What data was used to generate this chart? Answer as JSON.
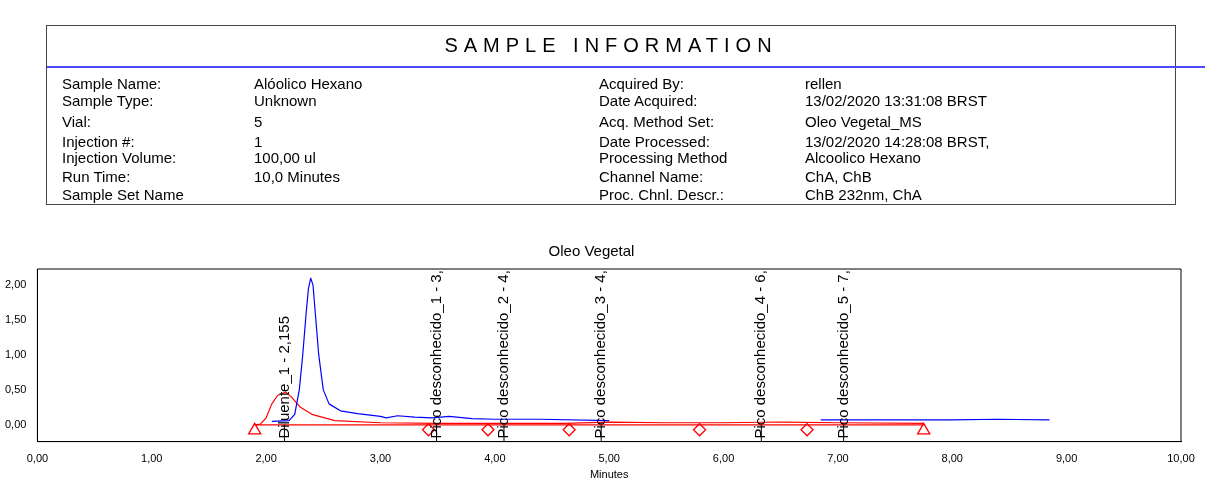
{
  "chart_data": [
    {
      "type": "other",
      "title": "SAMPLE INFORMATION",
      "annotations": [
        "Sample Name:",
        "Sample Type:",
        "Vial:",
        "Injection #:",
        "Injection Volume:",
        "Run Time:",
        "Sample Set Name",
        "Alóolico Hexano",
        "Unknown",
        "5",
        "1",
        "100,00 ul",
        "10,0 Minutes",
        "Acquired By:",
        "Date Acquired:",
        "Acq. Method Set:",
        "Date Processed:",
        "Processing Method",
        "Channel Name:",
        "Proc. Chnl. Descr.:",
        "rellen",
        "13/02/2020 13:31:08 BRST",
        "Oleo Vegetal_MS",
        "13/02/2020 14:28:08 BRST,",
        "Alcoolico Hexano",
        "ChA, ChB",
        "ChB 232nm, ChA"
      ]
    },
    {
      "type": "line",
      "title": "Oleo Vegetal",
      "xlabel": "Minutes",
      "xlim": [
        0,
        10
      ],
      "xticks": [
        {
          "value": 0,
          "label": "0,00"
        },
        {
          "value": 1,
          "label": "1,00"
        },
        {
          "value": 2,
          "label": "2,00"
        },
        {
          "value": 3,
          "label": "3,00"
        },
        {
          "value": 4,
          "label": "4,00"
        },
        {
          "value": 5,
          "label": "5,00"
        },
        {
          "value": 6,
          "label": "6,00"
        },
        {
          "value": 7,
          "label": "7,00"
        },
        {
          "value": 8,
          "label": "8,00"
        },
        {
          "value": 9,
          "label": "9,00"
        },
        {
          "value": 10,
          "label": "10,00"
        }
      ],
      "ylim": [
        -0.24,
        2.23
      ],
      "yticks": [
        {
          "value": 0,
          "label": "0,00"
        },
        {
          "value": 0.5,
          "label": "0,50"
        },
        {
          "value": 1,
          "label": "1,00"
        },
        {
          "value": 1.5,
          "label": "1,50"
        },
        {
          "value": 2,
          "label": "2,00"
        }
      ],
      "grid": false,
      "legend": false,
      "line_style": "solid",
      "marker": "none",
      "series": [
        {
          "type": "line",
          "color": "#0000ff",
          "x": [
            2.05,
            2.2,
            2.25,
            2.29,
            2.32,
            2.35,
            2.37,
            2.39,
            2.41,
            2.43,
            2.46,
            2.5,
            2.55,
            2.65,
            2.8,
            3.0,
            3.05,
            3.15,
            3.3,
            3.45,
            3.6,
            3.8,
            4.0,
            4.4,
            5.0,
            5.9,
            6.85,
            7.4,
            8.0,
            8.4,
            8.85
          ],
          "values": [
            0.05,
            0.06,
            0.15,
            0.5,
            1.0,
            1.6,
            1.95,
            2.1,
            2.0,
            1.6,
            1.0,
            0.5,
            0.3,
            0.2,
            0.16,
            0.12,
            0.1,
            0.13,
            0.11,
            0.1,
            0.12,
            0.09,
            0.08,
            0.08,
            0.06,
            null,
            0.07,
            0.07,
            0.07,
            0.08,
            0.07
          ]
        },
        {
          "type": "line",
          "color": "#ff0000",
          "x": [
            1.9,
            1.95,
            2.0,
            2.05,
            2.1,
            2.17,
            2.22,
            2.3,
            2.4,
            2.6,
            3.0,
            3.5,
            4.0,
            4.6,
            5.0,
            5.5,
            6.0,
            6.5,
            7.0,
            7.75
          ],
          "values": [
            0,
            0.01,
            0.1,
            0.3,
            0.42,
            0.47,
            0.4,
            0.25,
            0.15,
            0.06,
            0.03,
            0.02,
            0.02,
            0.02,
            0.04,
            0.03,
            0.03,
            0.04,
            0.03,
            0.02
          ]
        },
        {
          "type": "line",
          "color": "#ff0000",
          "x": [
            1.9,
            7.75
          ],
          "values": [
            0,
            0
          ]
        },
        {
          "type": "scatter",
          "color": "#ff0000",
          "marker": "triangle",
          "x": [
            1.9,
            7.75
          ],
          "values": [
            -0.08,
            -0.08
          ]
        },
        {
          "type": "scatter",
          "color": "#ff0000",
          "marker": "diamond",
          "x": [
            3.42,
            3.94,
            4.65,
            5.79,
            6.73
          ],
          "values": [
            -0.07,
            -0.07,
            -0.07,
            -0.07,
            -0.07
          ]
        }
      ],
      "ref_lines": [
        {
          "axis": "x",
          "value": 2.16,
          "label": "Diluente_1 - 2,155"
        },
        {
          "axis": "x",
          "value": 3.49,
          "label": "Pico desconhecido_1 - 3,"
        },
        {
          "axis": "x",
          "value": 4.08,
          "label": "Pico desconhecido_2 - 4,"
        },
        {
          "axis": "x",
          "value": 4.93,
          "label": "Pico desconhecido_3 - 4,"
        },
        {
          "axis": "x",
          "value": 6.33,
          "label": "Pico desconhecido_4 - 6,"
        },
        {
          "axis": "x",
          "value": 7.05,
          "label": "Pico desconhecido_5 - 7,"
        }
      ]
    }
  ]
}
